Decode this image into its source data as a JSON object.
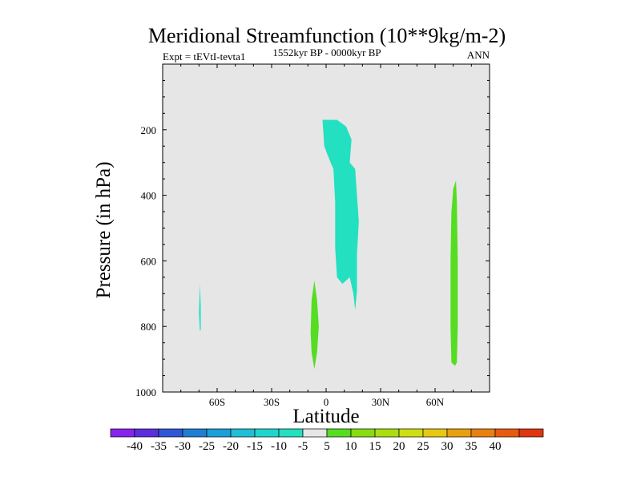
{
  "chart_data": {
    "type": "contour",
    "title": "Meridional Streamfunction (10**9kg/m-2)",
    "left_string": "Expt = tEVtI-tevta1",
    "center_string": "1552kyr BP - 0000kyr BP",
    "right_string": "ANN",
    "xlabel": "Latitude",
    "ylabel": "Pressure (in hPa)",
    "xlim": [
      -90,
      90
    ],
    "ylim": [
      1000,
      0
    ],
    "y_reversed": true,
    "x_ticks": [
      {
        "value": -60,
        "label": "60S"
      },
      {
        "value": -30,
        "label": "30S"
      },
      {
        "value": 0,
        "label": "0"
      },
      {
        "value": 30,
        "label": "30N"
      },
      {
        "value": 60,
        "label": "60N"
      }
    ],
    "y_ticks": [
      {
        "value": 200,
        "label": "200"
      },
      {
        "value": 400,
        "label": "400"
      },
      {
        "value": 600,
        "label": "600"
      },
      {
        "value": 800,
        "label": "800"
      },
      {
        "value": 1000,
        "label": "1000"
      }
    ],
    "background_color": "#e6e6e6",
    "regions": [
      {
        "name": "upper-tropical-negative-cell",
        "level": "-10 to -5",
        "color": "#22e0c0",
        "points": [
          [
            -2,
            170
          ],
          [
            6,
            170
          ],
          [
            11,
            190
          ],
          [
            14,
            230
          ],
          [
            13,
            300
          ],
          [
            16,
            320
          ],
          [
            17,
            400
          ],
          [
            18,
            480
          ],
          [
            17,
            580
          ],
          [
            17,
            690
          ],
          [
            16,
            750
          ],
          [
            15,
            700
          ],
          [
            13,
            650
          ],
          [
            9,
            670
          ],
          [
            6,
            650
          ],
          [
            5,
            560
          ],
          [
            5,
            420
          ],
          [
            4,
            320
          ],
          [
            1,
            280
          ],
          [
            -1,
            250
          ]
        ]
      },
      {
        "name": "southern-negative-sliver",
        "level": "-10 to -5",
        "color": "#22e0c0",
        "points": [
          [
            -69.5,
            670
          ],
          [
            -69,
            740
          ],
          [
            -69,
            810
          ],
          [
            -69.5,
            815
          ],
          [
            -70,
            760
          ]
        ]
      },
      {
        "name": "equatorial-positive-cell",
        "level": "5 to 10",
        "color": "#55dd22",
        "points": [
          [
            -6.5,
            660
          ],
          [
            -5,
            720
          ],
          [
            -4,
            800
          ],
          [
            -5,
            880
          ],
          [
            -6.5,
            930
          ],
          [
            -8,
            880
          ],
          [
            -8.5,
            820
          ],
          [
            -8,
            720
          ]
        ]
      },
      {
        "name": "northern-positive-cell",
        "level": "5 to 10",
        "color": "#55dd22",
        "points": [
          [
            71.5,
            355
          ],
          [
            72,
            420
          ],
          [
            72.5,
            600
          ],
          [
            72.5,
            800
          ],
          [
            72,
            910
          ],
          [
            71,
            920
          ],
          [
            69,
            910
          ],
          [
            68.5,
            800
          ],
          [
            68.5,
            600
          ],
          [
            69,
            450
          ],
          [
            70,
            380
          ]
        ]
      }
    ],
    "colorbar": {
      "colors": [
        "#8822ee",
        "#5b2edc",
        "#2f57d6",
        "#1d7fd3",
        "#1a9fd8",
        "#1fbfd6",
        "#1fd6cf",
        "#22e0c0",
        "#e6e6e6",
        "#55dd22",
        "#88dd10",
        "#aade10",
        "#cddf10",
        "#e8c810",
        "#e8a010",
        "#e88010",
        "#e85a10",
        "#e03510"
      ],
      "labels": [
        "-40",
        "-35",
        "-30",
        "-25",
        "-20",
        "-15",
        "-10",
        "-5",
        "5",
        "10",
        "15",
        "20",
        "25",
        "30",
        "35",
        "40"
      ]
    }
  }
}
